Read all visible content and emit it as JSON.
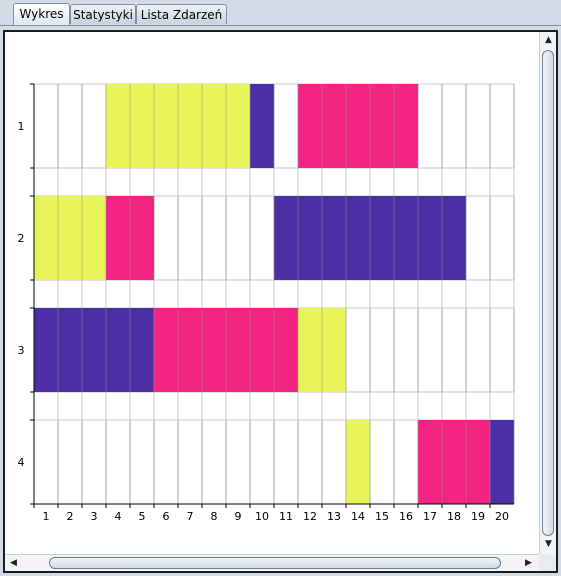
{
  "tabs": [
    {
      "label": "Wykres",
      "active": true
    },
    {
      "label": "Statystyki",
      "active": false
    },
    {
      "label": "Lista Zdarzeń",
      "active": false
    }
  ],
  "chart_data": {
    "type": "table",
    "rows": [
      {
        "label": "1",
        "cells": [
          "",
          "",
          "",
          "Y",
          "Y",
          "Y",
          "Y",
          "Y",
          "Y",
          "P",
          "",
          "M",
          "M",
          "M",
          "M",
          "M",
          "",
          "",
          "",
          ""
        ]
      },
      {
        "label": "2",
        "cells": [
          "Y",
          "Y",
          "Y",
          "M",
          "M",
          "",
          "",
          "",
          "",
          "",
          "P",
          "P",
          "P",
          "P",
          "P",
          "P",
          "P",
          "P",
          "",
          ""
        ]
      },
      {
        "label": "3",
        "cells": [
          "P",
          "P",
          "P",
          "P",
          "P",
          "M",
          "M",
          "M",
          "M",
          "M",
          "M",
          "Y",
          "Y",
          "",
          "",
          "",
          "",
          "",
          "",
          ""
        ]
      },
      {
        "label": "4",
        "cells": [
          "",
          "",
          "",
          "",
          "",
          "",
          "",
          "",
          "",
          "",
          "",
          "",
          "",
          "Y",
          "",
          "",
          "M",
          "M",
          "M",
          "P"
        ]
      }
    ],
    "columns": [
      "1",
      "2",
      "3",
      "4",
      "5",
      "6",
      "7",
      "8",
      "9",
      "10",
      "11",
      "12",
      "13",
      "14",
      "15",
      "16",
      "17",
      "18",
      "19",
      "20"
    ],
    "colors": {
      "Y": "#e9f45a",
      "M": "#f42483",
      "P": "#4e2ea4"
    },
    "gridColor": "#c8c8c8"
  }
}
